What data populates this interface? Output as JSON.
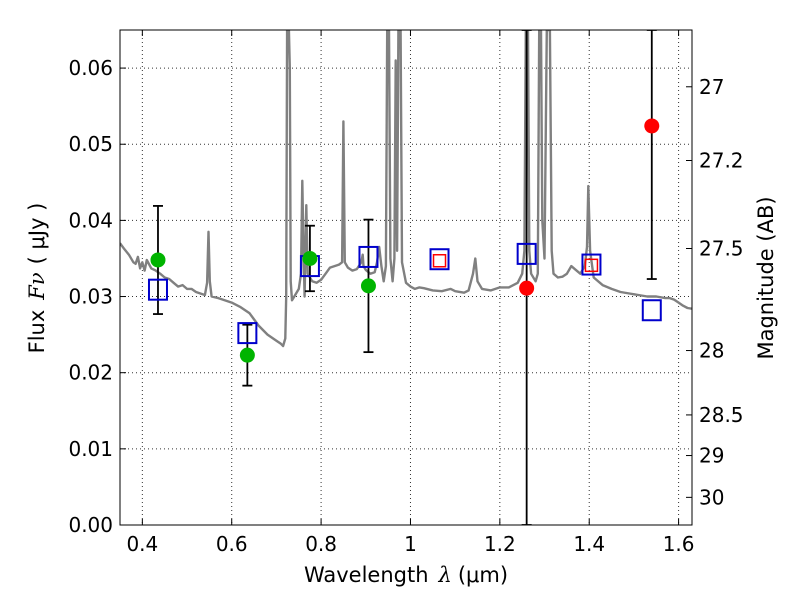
{
  "chart_data": {
    "type": "scatter",
    "xlabel_text": "Wavelength",
    "xlabel_symbol": "λ",
    "xlabel_unit": "(μm)",
    "ylabel_text": "Flux",
    "ylabel_symbol": "Fν",
    "ylabel_unit": "( μJy )",
    "y2label": "Magnitude (AB)",
    "xlim": [
      0.35,
      1.63
    ],
    "ylim": [
      0.0,
      0.065
    ],
    "x_ticks": [
      0.4,
      0.6,
      0.8,
      1.0,
      1.2,
      1.4,
      1.6
    ],
    "x_tick_labels": [
      "0.4",
      "0.6",
      "0.8",
      "1",
      "1.2",
      "1.4",
      "1.6"
    ],
    "y_ticks": [
      0.0,
      0.01,
      0.02,
      0.03,
      0.04,
      0.05,
      0.06
    ],
    "y_tick_labels": [
      "0.00",
      "0.01",
      "0.02",
      "0.03",
      "0.04",
      "0.05",
      "0.06"
    ],
    "y2_ticks": [
      27,
      27.2,
      27.5,
      28,
      28.5,
      29,
      30
    ],
    "y2_tick_labels": [
      "27",
      "27.2",
      "27.5",
      "28",
      "28.5",
      "29",
      "30"
    ],
    "grid": true,
    "colors": {
      "sed": "#808080",
      "model_blue": "#0000cc",
      "model_red": "#ff0000",
      "obs_green": "#00b400",
      "obs_red": "#ff0000",
      "errorbar": "#000000"
    },
    "sed_spectrum": [
      [
        0.35,
        0.037
      ],
      [
        0.36,
        0.0362
      ],
      [
        0.37,
        0.0355
      ],
      [
        0.38,
        0.0345
      ],
      [
        0.385,
        0.0343
      ],
      [
        0.39,
        0.0352
      ],
      [
        0.395,
        0.0337
      ],
      [
        0.4,
        0.0345
      ],
      [
        0.405,
        0.0334
      ],
      [
        0.41,
        0.0348
      ],
      [
        0.42,
        0.0337
      ],
      [
        0.43,
        0.0334
      ],
      [
        0.44,
        0.033
      ],
      [
        0.45,
        0.0325
      ],
      [
        0.46,
        0.0323
      ],
      [
        0.47,
        0.0318
      ],
      [
        0.48,
        0.0313
      ],
      [
        0.49,
        0.0315
      ],
      [
        0.5,
        0.031
      ],
      [
        0.51,
        0.031
      ],
      [
        0.52,
        0.0306
      ],
      [
        0.53,
        0.0304
      ],
      [
        0.54,
        0.0302
      ],
      [
        0.545,
        0.0318
      ],
      [
        0.548,
        0.0385
      ],
      [
        0.551,
        0.032
      ],
      [
        0.555,
        0.03
      ],
      [
        0.57,
        0.0298
      ],
      [
        0.58,
        0.0296
      ],
      [
        0.6,
        0.0292
      ],
      [
        0.62,
        0.0286
      ],
      [
        0.64,
        0.0278
      ],
      [
        0.66,
        0.0262
      ],
      [
        0.68,
        0.025
      ],
      [
        0.7,
        0.0242
      ],
      [
        0.71,
        0.0238
      ],
      [
        0.715,
        0.0235
      ],
      [
        0.72,
        0.0245
      ],
      [
        0.722,
        0.03
      ],
      [
        0.724,
        0.065
      ],
      [
        0.728,
        0.065
      ],
      [
        0.73,
        0.06
      ],
      [
        0.732,
        0.032
      ],
      [
        0.735,
        0.0295
      ],
      [
        0.74,
        0.03
      ],
      [
        0.75,
        0.031
      ],
      [
        0.755,
        0.033
      ],
      [
        0.758,
        0.0452
      ],
      [
        0.761,
        0.035
      ],
      [
        0.763,
        0.03
      ],
      [
        0.767,
        0.042
      ],
      [
        0.77,
        0.033
      ],
      [
        0.78,
        0.032
      ],
      [
        0.79,
        0.0318
      ],
      [
        0.8,
        0.0322
      ],
      [
        0.81,
        0.033
      ],
      [
        0.82,
        0.0338
      ],
      [
        0.83,
        0.034
      ],
      [
        0.84,
        0.0342
      ],
      [
        0.847,
        0.0345
      ],
      [
        0.85,
        0.053
      ],
      [
        0.853,
        0.0345
      ],
      [
        0.86,
        0.0338
      ],
      [
        0.87,
        0.0334
      ],
      [
        0.88,
        0.0336
      ],
      [
        0.89,
        0.0345
      ],
      [
        0.893,
        0.0355
      ],
      [
        0.895,
        0.034
      ],
      [
        0.9,
        0.0335
      ],
      [
        0.91,
        0.033
      ],
      [
        0.92,
        0.0332
      ],
      [
        0.925,
        0.0345
      ],
      [
        0.93,
        0.0365
      ],
      [
        0.935,
        0.034
      ],
      [
        0.94,
        0.032
      ],
      [
        0.945,
        0.034
      ],
      [
        0.948,
        0.065
      ],
      [
        0.952,
        0.065
      ],
      [
        0.955,
        0.035
      ],
      [
        0.96,
        0.032
      ],
      [
        0.964,
        0.035
      ],
      [
        0.967,
        0.061
      ],
      [
        0.97,
        0.036
      ],
      [
        0.973,
        0.065
      ],
      [
        0.978,
        0.065
      ],
      [
        0.981,
        0.0345
      ],
      [
        0.99,
        0.0318
      ],
      [
        1.0,
        0.0313
      ],
      [
        1.01,
        0.031
      ],
      [
        1.02,
        0.0312
      ],
      [
        1.03,
        0.0311
      ],
      [
        1.05,
        0.0308
      ],
      [
        1.07,
        0.0307
      ],
      [
        1.09,
        0.031
      ],
      [
        1.1,
        0.0307
      ],
      [
        1.12,
        0.0305
      ],
      [
        1.13,
        0.0308
      ],
      [
        1.14,
        0.033
      ],
      [
        1.145,
        0.035
      ],
      [
        1.15,
        0.032
      ],
      [
        1.16,
        0.031
      ],
      [
        1.18,
        0.0308
      ],
      [
        1.2,
        0.0312
      ],
      [
        1.22,
        0.0312
      ],
      [
        1.24,
        0.0318
      ],
      [
        1.25,
        0.033
      ],
      [
        1.255,
        0.036
      ],
      [
        1.258,
        0.065
      ],
      [
        1.263,
        0.065
      ],
      [
        1.266,
        0.036
      ],
      [
        1.27,
        0.033
      ],
      [
        1.28,
        0.032
      ],
      [
        1.285,
        0.033
      ],
      [
        1.288,
        0.065
      ],
      [
        1.292,
        0.065
      ],
      [
        1.295,
        0.04
      ],
      [
        1.3,
        0.035
      ],
      [
        1.305,
        0.065
      ],
      [
        1.312,
        0.065
      ],
      [
        1.316,
        0.036
      ],
      [
        1.32,
        0.033
      ],
      [
        1.33,
        0.0325
      ],
      [
        1.34,
        0.0326
      ],
      [
        1.35,
        0.033
      ],
      [
        1.36,
        0.034
      ],
      [
        1.37,
        0.0335
      ],
      [
        1.38,
        0.033
      ],
      [
        1.39,
        0.034
      ],
      [
        1.395,
        0.0365
      ],
      [
        1.398,
        0.0445
      ],
      [
        1.402,
        0.036
      ],
      [
        1.41,
        0.0325
      ],
      [
        1.43,
        0.0315
      ],
      [
        1.45,
        0.031
      ],
      [
        1.47,
        0.0306
      ],
      [
        1.49,
        0.0304
      ],
      [
        1.51,
        0.0302
      ],
      [
        1.53,
        0.03
      ],
      [
        1.55,
        0.03
      ],
      [
        1.57,
        0.0298
      ],
      [
        1.58,
        0.0298
      ],
      [
        1.59,
        0.0296
      ],
      [
        1.6,
        0.0292
      ],
      [
        1.61,
        0.0288
      ],
      [
        1.62,
        0.0285
      ],
      [
        1.63,
        0.0284
      ]
    ],
    "model_blue_squares": [
      {
        "x": 0.435,
        "y": 0.0309
      },
      {
        "x": 0.635,
        "y": 0.0252
      },
      {
        "x": 0.775,
        "y": 0.034
      },
      {
        "x": 0.906,
        "y": 0.0352
      },
      {
        "x": 1.065,
        "y": 0.0349
      },
      {
        "x": 1.26,
        "y": 0.0356
      },
      {
        "x": 1.405,
        "y": 0.0342
      },
      {
        "x": 1.54,
        "y": 0.0282
      }
    ],
    "model_red_squares": [
      {
        "x": 1.065,
        "y": 0.0347
      },
      {
        "x": 1.405,
        "y": 0.0341
      }
    ],
    "observed_points": [
      {
        "x": 0.435,
        "y": 0.0348,
        "err_low": 0.0071,
        "err_high": 0.0071,
        "color": "green"
      },
      {
        "x": 0.635,
        "y": 0.0223,
        "err_low": 0.004,
        "err_high": 0.004,
        "color": "green"
      },
      {
        "x": 0.775,
        "y": 0.035,
        "err_low": 0.0043,
        "err_high": 0.0043,
        "color": "green"
      },
      {
        "x": 0.906,
        "y": 0.0314,
        "err_low": 0.0087,
        "err_high": 0.0087,
        "color": "green"
      },
      {
        "x": 1.26,
        "y": 0.0311,
        "err_low": 0.0311,
        "err_high": 0.0339,
        "color": "red"
      },
      {
        "x": 1.54,
        "y": 0.0524,
        "err_low": 0.0201,
        "err_high": 0.0126,
        "color": "red"
      }
    ]
  }
}
